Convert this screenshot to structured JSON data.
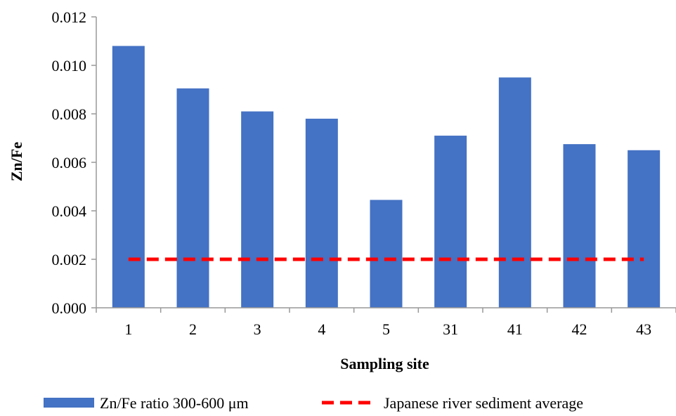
{
  "chart_data": {
    "type": "bar",
    "title": "",
    "xlabel": "Sampling site",
    "ylabel": "Zn/Fe",
    "categories": [
      "1",
      "2",
      "3",
      "4",
      "5",
      "31",
      "41",
      "42",
      "43"
    ],
    "series": [
      {
        "name": "Zn/Fe ratio 300-600 μm",
        "type": "bar",
        "color": "#4472C4",
        "values": [
          0.0108,
          0.00905,
          0.0081,
          0.0078,
          0.00445,
          0.0071,
          0.0095,
          0.00675,
          0.0065
        ]
      },
      {
        "name": "Japanese river sediment average",
        "type": "line",
        "style": "dashed",
        "color": "#FF0000",
        "values": [
          0.002,
          0.002,
          0.002,
          0.002,
          0.002,
          0.002,
          0.002,
          0.002,
          0.002
        ]
      }
    ],
    "ylim": [
      0,
      0.012
    ],
    "yticks": [
      "0.000",
      "0.002",
      "0.004",
      "0.006",
      "0.008",
      "0.010",
      "0.012"
    ],
    "grid": false,
    "legend": "bottom"
  }
}
